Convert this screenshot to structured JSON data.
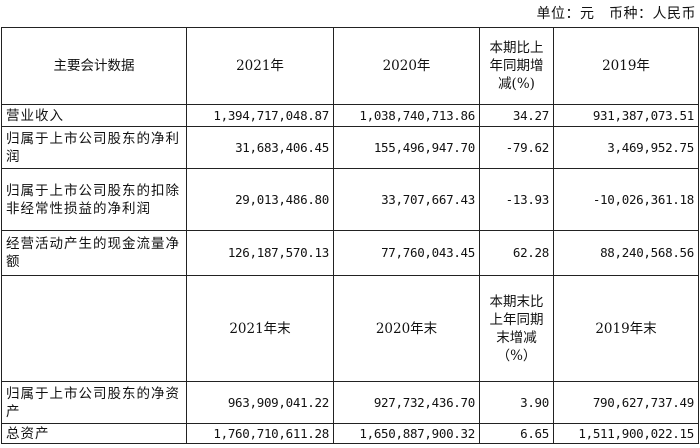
{
  "caption": "单位：元　币种：人民币",
  "header1": {
    "label": "主要会计数据",
    "y2021": "2021年",
    "y2020": "2020年",
    "change": "本期比上年同期增减(%)",
    "y2019": "2019年"
  },
  "rows1": [
    {
      "label": "营业收入",
      "y2021": "1,394,717,048.87",
      "y2020": "1,038,740,713.86",
      "change": "34.27",
      "y2019": "931,387,073.51"
    },
    {
      "label": "归属于上市公司股东的净利润",
      "y2021": "31,683,406.45",
      "y2020": "155,496,947.70",
      "change": "-79.62",
      "y2019": "3,469,952.75"
    },
    {
      "label": "归属于上市公司股东的扣除非经常性损益的净利润",
      "y2021": "29,013,486.80",
      "y2020": "33,707,667.43",
      "change": "-13.93",
      "y2019": "-10,026,361.18"
    },
    {
      "label": "经营活动产生的现金流量净额",
      "y2021": "126,187,570.13",
      "y2020": "77,760,043.45",
      "change": "62.28",
      "y2019": "88,240,568.56"
    }
  ],
  "header2": {
    "label": "",
    "y2021": "2021年末",
    "y2020": "2020年末",
    "change": "本期末比上年同期末增减（%）",
    "y2019": "2019年末"
  },
  "rows2": [
    {
      "label": "归属于上市公司股东的净资产",
      "y2021": "963,909,041.22",
      "y2020": "927,732,436.70",
      "change": "3.90",
      "y2019": "790,627,737.49"
    },
    {
      "label": "总资产",
      "y2021": "1,760,710,611.28",
      "y2020": "1,650,887,900.32",
      "change": "6.65",
      "y2019": "1,511,900,022.15"
    }
  ]
}
